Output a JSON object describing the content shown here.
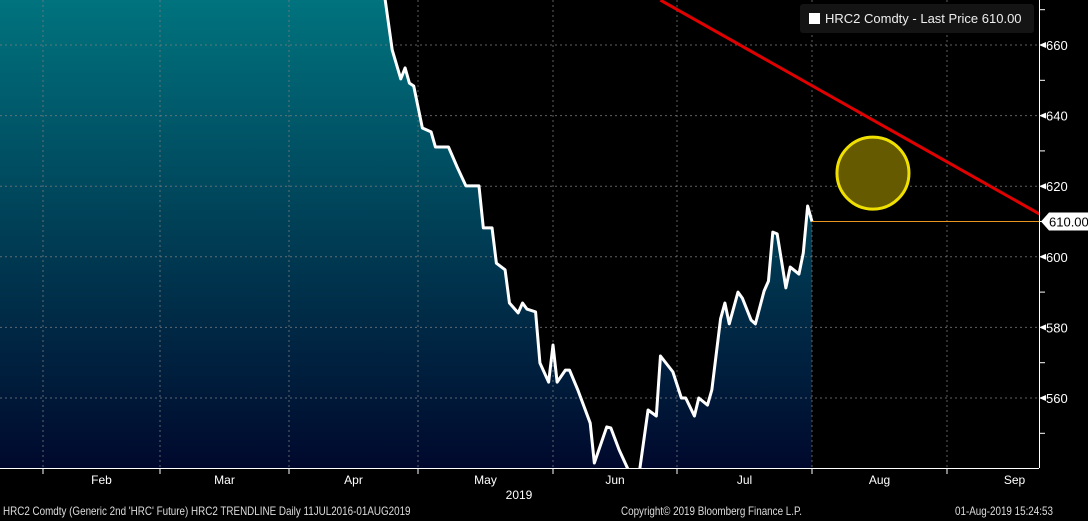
{
  "legend": {
    "label": "HRC2 Comdty - Last Price 610.00",
    "swatch_color": "#ffffff"
  },
  "footer": {
    "description": "HRC2 Comdty (Generic 2nd 'HRC' Future) HRC2 TRENDLINE  Daily 11JUL2016-01AUG2019",
    "copyright": "Copyright© 2019 Bloomberg Finance L.P.",
    "timestamp": "01-Aug-2019 15:24:53"
  },
  "chart_data": {
    "type": "area",
    "title": "",
    "xlabel": "2019",
    "ylabel": "",
    "ylim": [
      540,
      672.7
    ],
    "grid": true,
    "legend_position": "top-right",
    "x_ticks": [
      "Feb",
      "Mar",
      "Apr",
      "May",
      "Jun",
      "Jul",
      "Aug",
      "Sep"
    ],
    "y_ticks": [
      560,
      580,
      600,
      620,
      640,
      660
    ],
    "last_price_label": "610.00",
    "colors": {
      "line": "#ffffff",
      "fill_top": "#007680",
      "fill_bottom": "#00052a",
      "trendline": "#e00000",
      "last_price_line": "#e8961e",
      "highlight_circle_stroke": "#f0e000",
      "highlight_circle_fill": "#665a00"
    },
    "series": [
      {
        "name": "HRC2 Comdty - Last Price",
        "points": [
          [
            "2019-04-23",
            676
          ],
          [
            "2019-04-25",
            658.6
          ],
          [
            "2019-04-27",
            650.4
          ],
          [
            "2019-04-28",
            653.5
          ],
          [
            "2019-04-29",
            649.2
          ],
          [
            "2019-04-30",
            648.4
          ],
          [
            "2019-05-02",
            636.5
          ],
          [
            "2019-05-04",
            635.4
          ],
          [
            "2019-05-05",
            631.1
          ],
          [
            "2019-05-08",
            631.1
          ],
          [
            "2019-05-10",
            625.4
          ],
          [
            "2019-05-12",
            620.1
          ],
          [
            "2019-05-15",
            620.1
          ],
          [
            "2019-05-16",
            608.2
          ],
          [
            "2019-05-18",
            608.2
          ],
          [
            "2019-05-19",
            598.2
          ],
          [
            "2019-05-21",
            596.3
          ],
          [
            "2019-05-22",
            586.9
          ],
          [
            "2019-05-24",
            584.1
          ],
          [
            "2019-05-25",
            586.9
          ],
          [
            "2019-05-26",
            585.2
          ],
          [
            "2019-05-28",
            584.4
          ],
          [
            "2019-05-29",
            569.9
          ],
          [
            "2019-05-31",
            564.5
          ],
          [
            "2019-06-01",
            575.0
          ],
          [
            "2019-06-02",
            564.5
          ],
          [
            "2019-06-04",
            567.9
          ],
          [
            "2019-06-05",
            567.9
          ],
          [
            "2019-06-07",
            562.3
          ],
          [
            "2019-06-10",
            552.9
          ],
          [
            "2019-06-11",
            541.6
          ],
          [
            "2019-06-14",
            551.8
          ],
          [
            "2019-06-15",
            551.5
          ],
          [
            "2019-06-17",
            545.3
          ],
          [
            "2019-06-19",
            540.2
          ],
          [
            "2019-06-20",
            536
          ],
          [
            "2019-06-22",
            539.9
          ],
          [
            "2019-06-24",
            556.6
          ],
          [
            "2019-06-26",
            554.9
          ],
          [
            "2019-06-27",
            571.9
          ],
          [
            "2019-06-30",
            567.4
          ],
          [
            "2019-07-02",
            560.0
          ],
          [
            "2019-07-03",
            560.0
          ],
          [
            "2019-07-05",
            554.9
          ],
          [
            "2019-07-06",
            560.0
          ],
          [
            "2019-07-08",
            558.0
          ],
          [
            "2019-07-09",
            562.3
          ],
          [
            "2019-07-11",
            582.4
          ],
          [
            "2019-07-12",
            586.9
          ],
          [
            "2019-07-13",
            581.0
          ],
          [
            "2019-07-15",
            590.0
          ],
          [
            "2019-07-16",
            588.3
          ],
          [
            "2019-07-18",
            582.1
          ],
          [
            "2019-07-19",
            581.0
          ],
          [
            "2019-07-21",
            590.3
          ],
          [
            "2019-07-22",
            593.1
          ],
          [
            "2019-07-23",
            607.0
          ],
          [
            "2019-07-24",
            606.5
          ],
          [
            "2019-07-26",
            591.2
          ],
          [
            "2019-07-27",
            597.1
          ],
          [
            "2019-07-29",
            595.1
          ],
          [
            "2019-07-30",
            601.1
          ],
          [
            "2019-07-31",
            614.4
          ],
          [
            "2019-08-01",
            610.0
          ]
        ]
      }
    ],
    "trendline": {
      "name": "HRC2 TRENDLINE",
      "points": [
        [
          "2019-06-27",
          672.7
        ],
        [
          "2019-09-22",
          611.8
        ]
      ]
    },
    "highlight_circle": {
      "date": "2019-08-15",
      "value": 623.7
    }
  }
}
